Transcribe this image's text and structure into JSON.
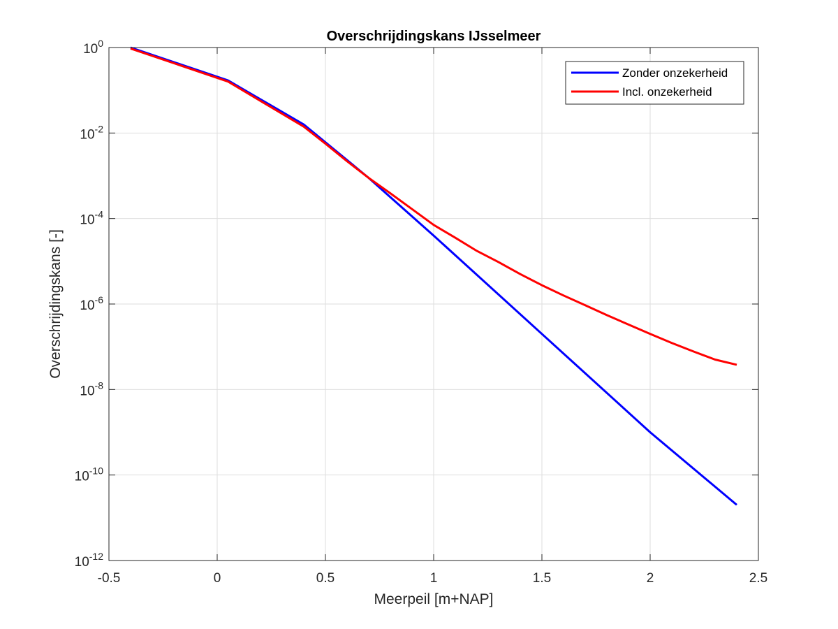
{
  "chart_data": {
    "type": "line",
    "title": "Overschrijdingskans IJsselmeer",
    "xlabel": "Meerpeil [m+NAP]",
    "ylabel": "Overschrijdingskans [-]",
    "xlim": [
      -0.5,
      2.5
    ],
    "ylim": [
      1e-12,
      1
    ],
    "yscale": "log",
    "grid": true,
    "legend_position": "top-right",
    "x_ticks": [
      -0.5,
      0,
      0.5,
      1,
      1.5,
      2,
      2.5
    ],
    "x_tick_labels": [
      "-0.5",
      "0",
      "0.5",
      "1",
      "1.5",
      "2",
      "2.5"
    ],
    "y_tick_exponents": [
      0,
      -2,
      -4,
      -6,
      -8,
      -10,
      -12
    ],
    "y_tick_base": "10",
    "y_tick_exponent_labels": [
      "0",
      "-2",
      "-4",
      "-6",
      "-8",
      "-10",
      "-12"
    ],
    "series": [
      {
        "name": "Zonder onzekerheid",
        "color": "#0000ff",
        "x": [
          -0.4,
          0.05,
          0.4,
          0.7,
          1.0,
          1.5,
          2.0,
          2.4
        ],
        "y": [
          1.0,
          0.17,
          0.0158,
          0.000891,
          3.98e-05,
          2e-07,
          1e-09,
          2e-11
        ]
      },
      {
        "name": "Incl. onzekerheid",
        "color": "#ff0000",
        "x": [
          -0.4,
          0.05,
          0.4,
          0.5,
          0.6,
          0.7,
          0.8,
          0.9,
          1.0,
          1.1,
          1.2,
          1.3,
          1.4,
          1.5,
          1.6,
          1.7,
          1.8,
          1.9,
          2.0,
          2.1,
          2.2,
          2.3,
          2.4
        ],
        "y": [
          0.95,
          0.16,
          0.0141,
          0.00562,
          0.00219,
          0.000891,
          0.000389,
          0.000166,
          7.08e-05,
          3.55e-05,
          1.74e-05,
          9.55e-06,
          5.01e-06,
          2.75e-06,
          1.58e-06,
          9.33e-07,
          5.5e-07,
          3.31e-07,
          2e-07,
          1.23e-07,
          7.76e-08,
          5.01e-08,
          3.8e-08
        ]
      }
    ]
  }
}
